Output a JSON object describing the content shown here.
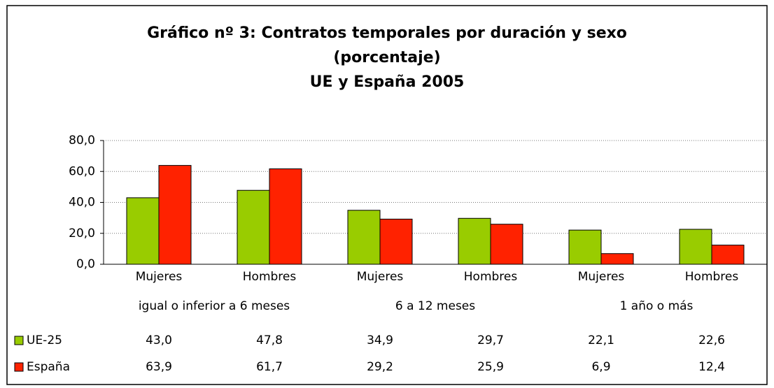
{
  "chart_data": {
    "type": "bar",
    "title": [
      "Gráfico nº 3: Contratos temporales por duración y sexo",
      "(porcentaje)",
      "UE y España 2005"
    ],
    "categories": [
      "Mujeres",
      "Hombres",
      "Mujeres",
      "Hombres",
      "Mujeres",
      "Hombres"
    ],
    "groups": [
      "igual o inferior a 6 meses",
      "6 a 12 meses",
      "1 año o más"
    ],
    "series": [
      {
        "name": "UE-25",
        "color": "#99cc00",
        "values": [
          43.0,
          47.8,
          34.9,
          29.7,
          22.1,
          22.6
        ],
        "value_labels": [
          "43,0",
          "47,8",
          "34,9",
          "29,7",
          "22,1",
          "22,6"
        ]
      },
      {
        "name": "España",
        "color": "#ff2200",
        "values": [
          63.9,
          61.7,
          29.2,
          25.9,
          6.9,
          12.4
        ],
        "value_labels": [
          "63,9",
          "61,7",
          "29,2",
          "25,9",
          "6,9",
          "12,4"
        ]
      }
    ],
    "ylim": [
      0,
      80
    ],
    "yticks": [
      {
        "value": 0,
        "label": "0,0"
      },
      {
        "value": 20,
        "label": "20,0"
      },
      {
        "value": 40,
        "label": "40,0"
      },
      {
        "value": 60,
        "label": "60,0"
      },
      {
        "value": 80,
        "label": "80,0"
      }
    ],
    "grid": true
  }
}
